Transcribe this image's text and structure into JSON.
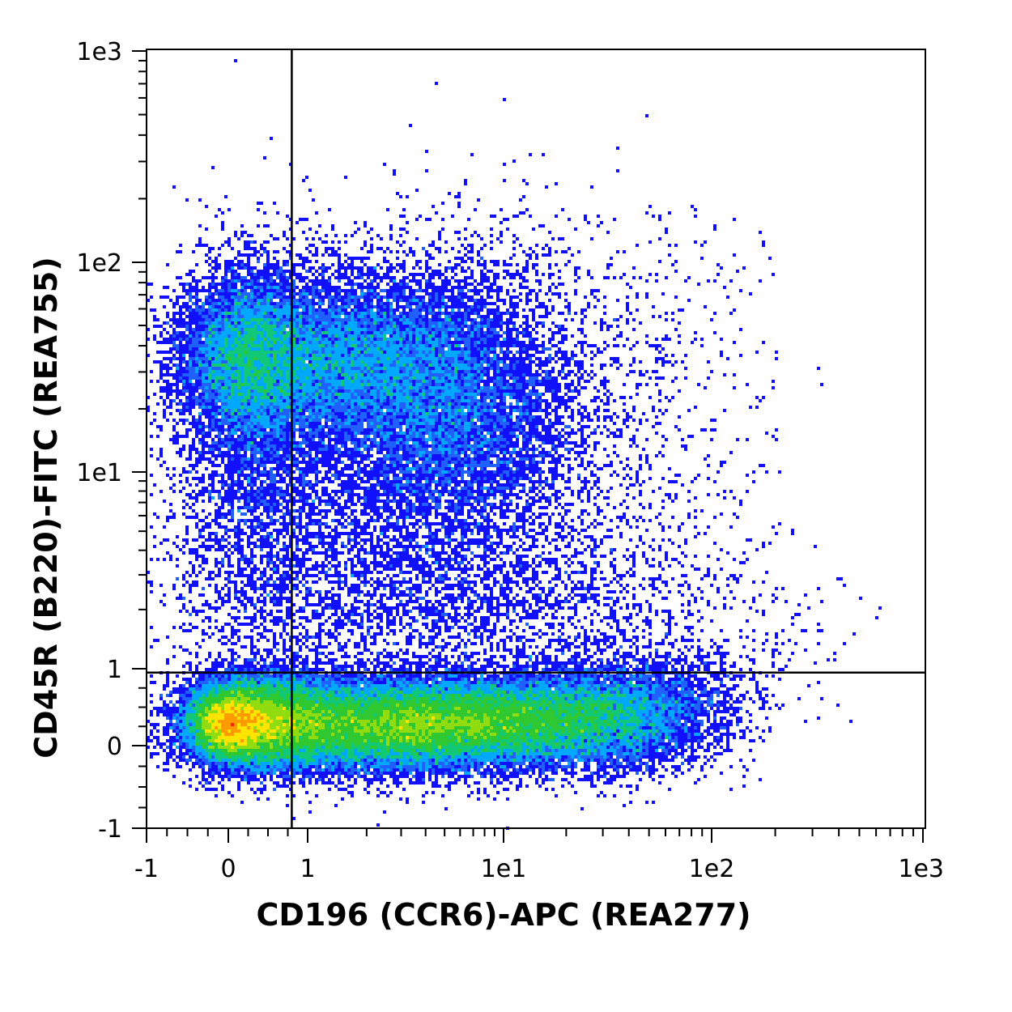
{
  "chart_data": {
    "type": "scatter",
    "plot_style": "flow cytometry density dot plot (blue to green to yellow to red)",
    "xlabel": "CD196 (CCR6)-APC (REA277)",
    "ylabel": "CD45R (B220)-FITC (REA755)",
    "x_scale": "biexponential (hlog)",
    "y_scale": "biexponential (hlog)",
    "xlim": [
      -1,
      1000
    ],
    "ylim": [
      -1,
      1000
    ],
    "x_ticks": [
      {
        "value": -1,
        "label": "-1"
      },
      {
        "value": 0,
        "label": "0"
      },
      {
        "value": 1,
        "label": "1"
      },
      {
        "value": 10,
        "label": "1e1"
      },
      {
        "value": 100,
        "label": "1e2"
      },
      {
        "value": 1000,
        "label": "1e3"
      }
    ],
    "y_ticks": [
      {
        "value": -1,
        "label": "-1"
      },
      {
        "value": 0,
        "label": "0"
      },
      {
        "value": 1,
        "label": "1"
      },
      {
        "value": 10,
        "label": "1e1"
      },
      {
        "value": 100,
        "label": "1e2"
      },
      {
        "value": 1000,
        "label": "1e3"
      }
    ],
    "quadrant_gate": {
      "x": 0.8,
      "y": 0.95
    },
    "populations": [
      {
        "x_center": 0.15,
        "y_center": 0.25,
        "density": "peak (red)"
      },
      {
        "x_center": 3.0,
        "y_center": 0.2,
        "density": "high (yellow-red)"
      },
      {
        "x_center": 0.6,
        "y_center": 35,
        "density": "medium (green)"
      },
      {
        "x_center": 3.0,
        "y_center": 30,
        "density": "medium (green)"
      }
    ],
    "grid": false,
    "colors": {
      "low": "#1414ff",
      "mid_low": "#00c8ff",
      "mid": "#28c828",
      "high": "#ffee00",
      "peak": "#ff2000",
      "gate_line": "#000000",
      "frame": "#000000"
    }
  }
}
